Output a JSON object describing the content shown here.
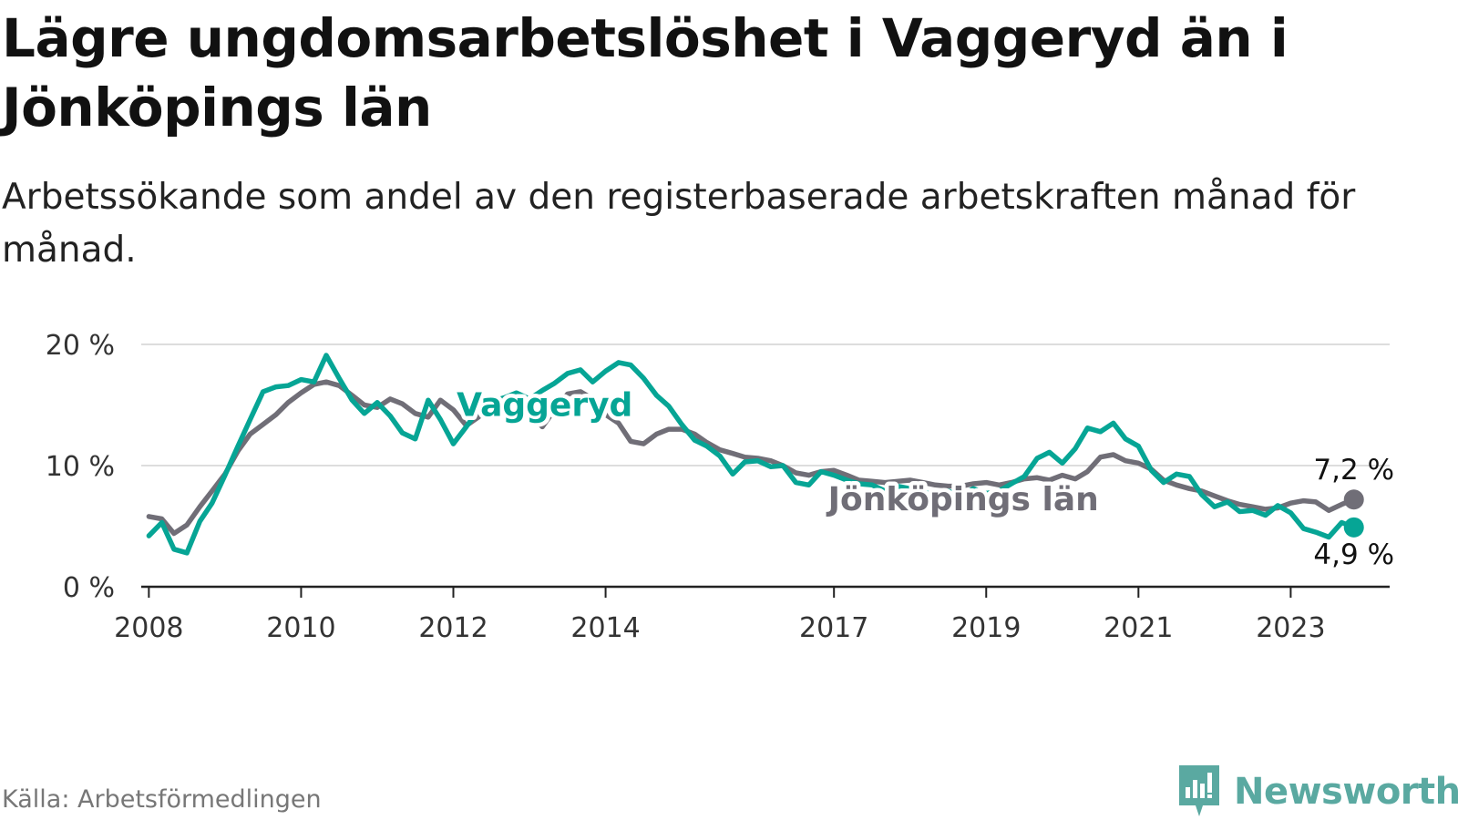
{
  "title": "Lägre ungdomsarbetslöshet i Vaggeryd än i Jönköpings län",
  "subtitle": "Arbetssökande som andel av den registerbaserade arbetskraften månad för månad.",
  "source": "Källa: Arbetsförmedlingen",
  "brand": {
    "name": "Newsworthy",
    "icon": "newsworthy-logo-icon"
  },
  "colors": {
    "vaggeryd": "#06A595",
    "lan": "#706E77",
    "grid": "#DDDDDD",
    "axis": "#222222"
  },
  "chart_data": {
    "type": "line",
    "title": "Lägre ungdomsarbetslöshet i Vaggeryd än i Jönköpings län",
    "xlabel": "",
    "ylabel": "",
    "xlim": [
      2007.9,
      2024.3
    ],
    "ylim": [
      0,
      20
    ],
    "grid": true,
    "y_ticks": [
      {
        "value": 0,
        "label": "0 %"
      },
      {
        "value": 10,
        "label": "10 %"
      },
      {
        "value": 20,
        "label": "20 %"
      }
    ],
    "x_ticks": [
      {
        "value": 2008,
        "label": "2008"
      },
      {
        "value": 2010,
        "label": "2010"
      },
      {
        "value": 2012,
        "label": "2012"
      },
      {
        "value": 2014,
        "label": "2014"
      },
      {
        "value": 2017,
        "label": "2017"
      },
      {
        "value": 2019,
        "label": "2019"
      },
      {
        "value": 2021,
        "label": "2021"
      },
      {
        "value": 2023,
        "label": "2023"
      }
    ],
    "series": [
      {
        "name": "Jönköpings län",
        "color": "#706E77",
        "end_label": "7,2 %",
        "series_label": "Jönköpings län",
        "points": [
          [
            2008.0,
            5.8
          ],
          [
            2008.17,
            5.6
          ],
          [
            2008.33,
            4.4
          ],
          [
            2008.5,
            5.1
          ],
          [
            2008.67,
            6.6
          ],
          [
            2008.83,
            7.9
          ],
          [
            2009.0,
            9.3
          ],
          [
            2009.17,
            11.2
          ],
          [
            2009.33,
            12.6
          ],
          [
            2009.5,
            13.4
          ],
          [
            2009.67,
            14.2
          ],
          [
            2009.83,
            15.2
          ],
          [
            2010.0,
            16.0
          ],
          [
            2010.17,
            16.7
          ],
          [
            2010.33,
            16.9
          ],
          [
            2010.5,
            16.6
          ],
          [
            2010.67,
            15.8
          ],
          [
            2010.83,
            15.0
          ],
          [
            2011.0,
            14.8
          ],
          [
            2011.17,
            15.5
          ],
          [
            2011.33,
            15.1
          ],
          [
            2011.5,
            14.3
          ],
          [
            2011.67,
            14.0
          ],
          [
            2011.83,
            15.4
          ],
          [
            2012.0,
            14.6
          ],
          [
            2012.17,
            13.3
          ],
          [
            2012.33,
            14.0
          ],
          [
            2012.5,
            15.0
          ],
          [
            2012.67,
            15.6
          ],
          [
            2012.83,
            15.0
          ],
          [
            2013.0,
            14.3
          ],
          [
            2013.17,
            13.2
          ],
          [
            2013.33,
            14.6
          ],
          [
            2013.5,
            15.9
          ],
          [
            2013.67,
            16.1
          ],
          [
            2013.83,
            15.5
          ],
          [
            2014.0,
            14.2
          ],
          [
            2014.17,
            13.5
          ],
          [
            2014.33,
            12.0
          ],
          [
            2014.5,
            11.8
          ],
          [
            2014.67,
            12.6
          ],
          [
            2014.83,
            13.0
          ],
          [
            2015.0,
            13.0
          ],
          [
            2015.17,
            12.6
          ],
          [
            2015.33,
            11.9
          ],
          [
            2015.5,
            11.3
          ],
          [
            2015.67,
            11.0
          ],
          [
            2015.83,
            10.7
          ],
          [
            2016.0,
            10.6
          ],
          [
            2016.17,
            10.4
          ],
          [
            2016.33,
            10.0
          ],
          [
            2016.5,
            9.4
          ],
          [
            2016.67,
            9.2
          ],
          [
            2016.83,
            9.5
          ],
          [
            2017.0,
            9.6
          ],
          [
            2017.17,
            9.2
          ],
          [
            2017.33,
            8.8
          ],
          [
            2017.5,
            8.7
          ],
          [
            2017.67,
            8.6
          ],
          [
            2017.83,
            8.7
          ],
          [
            2018.0,
            8.8
          ],
          [
            2018.17,
            8.6
          ],
          [
            2018.33,
            8.4
          ],
          [
            2018.5,
            8.3
          ],
          [
            2018.67,
            8.3
          ],
          [
            2018.83,
            8.5
          ],
          [
            2019.0,
            8.6
          ],
          [
            2019.17,
            8.4
          ],
          [
            2019.33,
            8.6
          ],
          [
            2019.5,
            8.9
          ],
          [
            2019.67,
            9.0
          ],
          [
            2019.83,
            8.8
          ],
          [
            2020.0,
            9.2
          ],
          [
            2020.17,
            8.9
          ],
          [
            2020.33,
            9.5
          ],
          [
            2020.5,
            10.7
          ],
          [
            2020.67,
            10.9
          ],
          [
            2020.83,
            10.4
          ],
          [
            2021.0,
            10.2
          ],
          [
            2021.17,
            9.7
          ],
          [
            2021.33,
            8.8
          ],
          [
            2021.5,
            8.4
          ],
          [
            2021.67,
            8.1
          ],
          [
            2021.83,
            7.9
          ],
          [
            2022.0,
            7.5
          ],
          [
            2022.17,
            7.1
          ],
          [
            2022.33,
            6.8
          ],
          [
            2022.5,
            6.6
          ],
          [
            2022.67,
            6.4
          ],
          [
            2022.83,
            6.5
          ],
          [
            2023.0,
            6.9
          ],
          [
            2023.17,
            7.1
          ],
          [
            2023.33,
            7.0
          ],
          [
            2023.5,
            6.3
          ],
          [
            2023.67,
            6.8
          ],
          [
            2023.83,
            7.2
          ]
        ]
      },
      {
        "name": "Vaggeryd",
        "color": "#06A595",
        "end_label": "4,9 %",
        "series_label": "Vaggeryd",
        "points": [
          [
            2008.0,
            4.2
          ],
          [
            2008.17,
            5.3
          ],
          [
            2008.33,
            3.1
          ],
          [
            2008.5,
            2.8
          ],
          [
            2008.67,
            5.4
          ],
          [
            2008.83,
            6.9
          ],
          [
            2009.0,
            9.2
          ],
          [
            2009.17,
            11.6
          ],
          [
            2009.33,
            13.8
          ],
          [
            2009.5,
            16.1
          ],
          [
            2009.67,
            16.5
          ],
          [
            2009.83,
            16.6
          ],
          [
            2010.0,
            17.1
          ],
          [
            2010.17,
            16.9
          ],
          [
            2010.33,
            19.1
          ],
          [
            2010.5,
            17.2
          ],
          [
            2010.67,
            15.4
          ],
          [
            2010.83,
            14.3
          ],
          [
            2011.0,
            15.2
          ],
          [
            2011.17,
            14.1
          ],
          [
            2011.33,
            12.7
          ],
          [
            2011.5,
            12.2
          ],
          [
            2011.67,
            15.4
          ],
          [
            2011.83,
            13.8
          ],
          [
            2012.0,
            11.8
          ],
          [
            2012.17,
            13.2
          ],
          [
            2012.33,
            14.6
          ],
          [
            2012.5,
            15.3
          ],
          [
            2012.67,
            15.6
          ],
          [
            2012.83,
            16.0
          ],
          [
            2013.0,
            15.5
          ],
          [
            2013.17,
            16.2
          ],
          [
            2013.33,
            16.8
          ],
          [
            2013.5,
            17.6
          ],
          [
            2013.67,
            17.9
          ],
          [
            2013.83,
            16.9
          ],
          [
            2014.0,
            17.8
          ],
          [
            2014.17,
            18.5
          ],
          [
            2014.33,
            18.3
          ],
          [
            2014.5,
            17.2
          ],
          [
            2014.67,
            15.8
          ],
          [
            2014.83,
            14.9
          ],
          [
            2015.0,
            13.4
          ],
          [
            2015.17,
            12.1
          ],
          [
            2015.33,
            11.6
          ],
          [
            2015.5,
            10.8
          ],
          [
            2015.67,
            9.3
          ],
          [
            2015.83,
            10.3
          ],
          [
            2016.0,
            10.4
          ],
          [
            2016.17,
            9.9
          ],
          [
            2016.33,
            10.0
          ],
          [
            2016.5,
            8.6
          ],
          [
            2016.67,
            8.4
          ],
          [
            2016.83,
            9.5
          ],
          [
            2017.0,
            9.2
          ],
          [
            2017.17,
            8.8
          ],
          [
            2017.33,
            8.5
          ],
          [
            2017.5,
            8.4
          ],
          [
            2017.67,
            7.9
          ],
          [
            2017.83,
            8.3
          ],
          [
            2018.0,
            8.1
          ],
          [
            2018.17,
            7.8
          ],
          [
            2018.33,
            7.6
          ],
          [
            2018.5,
            7.9
          ],
          [
            2018.67,
            7.5
          ],
          [
            2018.83,
            8.1
          ],
          [
            2019.0,
            7.7
          ],
          [
            2019.17,
            7.9
          ],
          [
            2019.33,
            8.5
          ],
          [
            2019.5,
            9.1
          ],
          [
            2019.67,
            10.6
          ],
          [
            2019.83,
            11.1
          ],
          [
            2020.0,
            10.2
          ],
          [
            2020.17,
            11.4
          ],
          [
            2020.33,
            13.1
          ],
          [
            2020.5,
            12.8
          ],
          [
            2020.67,
            13.5
          ],
          [
            2020.83,
            12.2
          ],
          [
            2021.0,
            11.6
          ],
          [
            2021.17,
            9.6
          ],
          [
            2021.33,
            8.6
          ],
          [
            2021.5,
            9.3
          ],
          [
            2021.67,
            9.1
          ],
          [
            2021.83,
            7.6
          ],
          [
            2022.0,
            6.6
          ],
          [
            2022.17,
            7.0
          ],
          [
            2022.33,
            6.2
          ],
          [
            2022.5,
            6.3
          ],
          [
            2022.67,
            5.9
          ],
          [
            2022.83,
            6.7
          ],
          [
            2023.0,
            6.1
          ],
          [
            2023.17,
            4.8
          ],
          [
            2023.33,
            4.5
          ],
          [
            2023.5,
            4.1
          ],
          [
            2023.67,
            5.3
          ],
          [
            2023.83,
            4.9
          ]
        ]
      }
    ]
  }
}
